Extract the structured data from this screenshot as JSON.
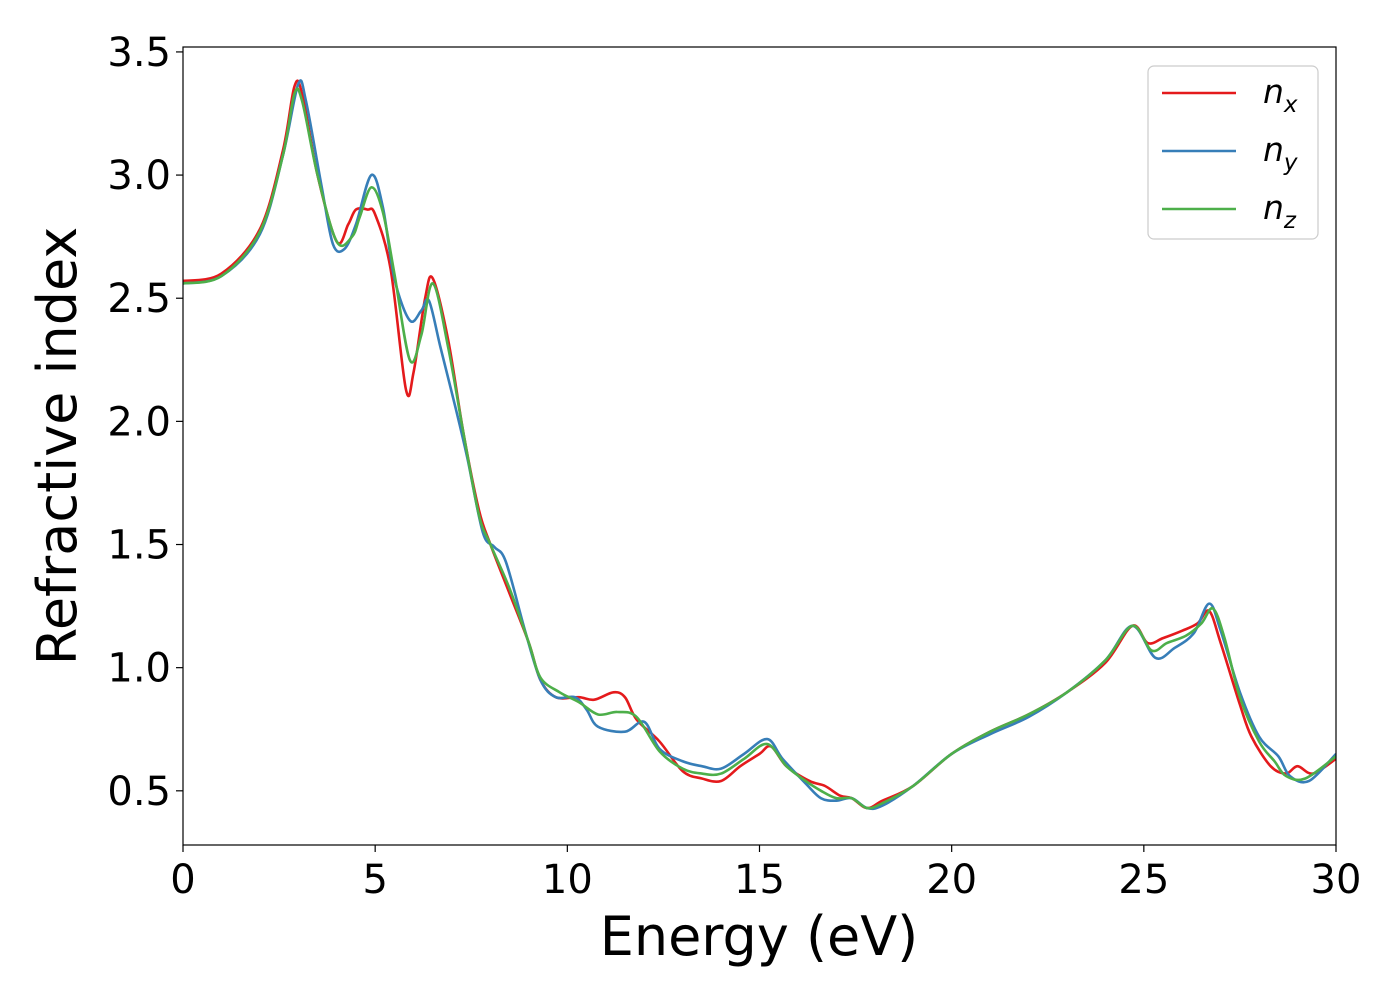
{
  "chart_data": {
    "type": "line",
    "title": "",
    "xlabel": "Energy (eV)",
    "ylabel": "Refractive index",
    "xlim": [
      0,
      30
    ],
    "ylim": [
      0.28,
      3.52
    ],
    "xticks": [
      0,
      5,
      10,
      15,
      20,
      25,
      30
    ],
    "yticks": [
      0.5,
      1.0,
      1.5,
      2.0,
      2.5,
      3.0,
      3.5
    ],
    "xtick_labels": [
      "0",
      "5",
      "10",
      "15",
      "20",
      "25",
      "30"
    ],
    "ytick_labels": [
      "0.5",
      "1.0",
      "1.5",
      "2.0",
      "2.5",
      "3.0",
      "3.5"
    ],
    "grid": false,
    "legend_position": "top-right",
    "series": [
      {
        "name": "n_x",
        "legend_base": "n",
        "legend_sub": "x",
        "color": "#e41a1c",
        "points": [
          [
            0,
            2.57
          ],
          [
            1,
            2.6
          ],
          [
            2,
            2.78
          ],
          [
            2.6,
            3.1
          ],
          [
            2.9,
            3.36
          ],
          [
            3.1,
            3.33
          ],
          [
            3.5,
            3.0
          ],
          [
            4.0,
            2.73
          ],
          [
            4.3,
            2.8
          ],
          [
            4.5,
            2.86
          ],
          [
            4.8,
            2.86
          ],
          [
            5.0,
            2.84
          ],
          [
            5.4,
            2.62
          ],
          [
            5.8,
            2.13
          ],
          [
            6.0,
            2.2
          ],
          [
            6.3,
            2.5
          ],
          [
            6.5,
            2.58
          ],
          [
            6.9,
            2.33
          ],
          [
            7.3,
            1.95
          ],
          [
            7.7,
            1.64
          ],
          [
            8.0,
            1.5
          ],
          [
            8.5,
            1.3
          ],
          [
            9.0,
            1.1
          ],
          [
            9.3,
            0.95
          ],
          [
            9.7,
            0.88
          ],
          [
            10.3,
            0.88
          ],
          [
            10.7,
            0.87
          ],
          [
            11.2,
            0.9
          ],
          [
            11.5,
            0.88
          ],
          [
            11.8,
            0.79
          ],
          [
            12.4,
            0.7
          ],
          [
            13.0,
            0.58
          ],
          [
            13.5,
            0.55
          ],
          [
            14.0,
            0.54
          ],
          [
            14.5,
            0.6
          ],
          [
            15.0,
            0.65
          ],
          [
            15.3,
            0.68
          ],
          [
            15.7,
            0.6
          ],
          [
            16.3,
            0.54
          ],
          [
            16.7,
            0.52
          ],
          [
            17.1,
            0.48
          ],
          [
            17.4,
            0.47
          ],
          [
            17.8,
            0.43
          ],
          [
            18.2,
            0.46
          ],
          [
            19.0,
            0.52
          ],
          [
            20.0,
            0.65
          ],
          [
            21.0,
            0.74
          ],
          [
            22.0,
            0.81
          ],
          [
            23.0,
            0.9
          ],
          [
            24.0,
            1.02
          ],
          [
            24.7,
            1.17
          ],
          [
            25.1,
            1.1
          ],
          [
            25.5,
            1.12
          ],
          [
            26.0,
            1.15
          ],
          [
            26.4,
            1.18
          ],
          [
            26.7,
            1.23
          ],
          [
            27.0,
            1.1
          ],
          [
            27.5,
            0.85
          ],
          [
            27.8,
            0.72
          ],
          [
            28.3,
            0.6
          ],
          [
            28.7,
            0.57
          ],
          [
            29.0,
            0.6
          ],
          [
            29.4,
            0.57
          ],
          [
            30,
            0.63
          ]
        ]
      },
      {
        "name": "n_y",
        "legend_base": "n",
        "legend_sub": "y",
        "color": "#377eb8",
        "points": [
          [
            0,
            2.56
          ],
          [
            1,
            2.59
          ],
          [
            2,
            2.76
          ],
          [
            2.6,
            3.08
          ],
          [
            3.0,
            3.37
          ],
          [
            3.2,
            3.3
          ],
          [
            3.6,
            2.96
          ],
          [
            3.9,
            2.72
          ],
          [
            4.2,
            2.7
          ],
          [
            4.5,
            2.8
          ],
          [
            4.9,
            3.0
          ],
          [
            5.2,
            2.87
          ],
          [
            5.5,
            2.58
          ],
          [
            5.9,
            2.41
          ],
          [
            6.2,
            2.45
          ],
          [
            6.4,
            2.49
          ],
          [
            6.7,
            2.3
          ],
          [
            7.1,
            2.05
          ],
          [
            7.4,
            1.85
          ],
          [
            7.8,
            1.55
          ],
          [
            8.1,
            1.49
          ],
          [
            8.4,
            1.43
          ],
          [
            8.9,
            1.15
          ],
          [
            9.3,
            0.95
          ],
          [
            9.7,
            0.88
          ],
          [
            10.2,
            0.88
          ],
          [
            10.5,
            0.83
          ],
          [
            10.8,
            0.76
          ],
          [
            11.5,
            0.74
          ],
          [
            12.0,
            0.78
          ],
          [
            12.4,
            0.67
          ],
          [
            13.0,
            0.62
          ],
          [
            13.5,
            0.6
          ],
          [
            14.0,
            0.59
          ],
          [
            14.6,
            0.65
          ],
          [
            15.2,
            0.71
          ],
          [
            15.6,
            0.63
          ],
          [
            16.2,
            0.53
          ],
          [
            16.6,
            0.47
          ],
          [
            17.0,
            0.46
          ],
          [
            17.4,
            0.47
          ],
          [
            17.8,
            0.43
          ],
          [
            18.2,
            0.44
          ],
          [
            19.0,
            0.52
          ],
          [
            20.0,
            0.65
          ],
          [
            21.0,
            0.73
          ],
          [
            22.0,
            0.8
          ],
          [
            23.0,
            0.9
          ],
          [
            24.0,
            1.03
          ],
          [
            24.7,
            1.17
          ],
          [
            25.3,
            1.04
          ],
          [
            25.8,
            1.08
          ],
          [
            26.3,
            1.14
          ],
          [
            26.7,
            1.26
          ],
          [
            27.0,
            1.15
          ],
          [
            27.5,
            0.9
          ],
          [
            28.0,
            0.72
          ],
          [
            28.5,
            0.64
          ],
          [
            28.8,
            0.56
          ],
          [
            29.3,
            0.54
          ],
          [
            30,
            0.65
          ]
        ]
      },
      {
        "name": "n_z",
        "legend_base": "n",
        "legend_sub": "z",
        "color": "#4daf4a",
        "points": [
          [
            0,
            2.56
          ],
          [
            1,
            2.59
          ],
          [
            2,
            2.77
          ],
          [
            2.6,
            3.08
          ],
          [
            2.9,
            3.33
          ],
          [
            3.1,
            3.3
          ],
          [
            3.5,
            3.0
          ],
          [
            4.0,
            2.73
          ],
          [
            4.4,
            2.75
          ],
          [
            4.6,
            2.83
          ],
          [
            4.9,
            2.95
          ],
          [
            5.2,
            2.85
          ],
          [
            5.5,
            2.6
          ],
          [
            5.9,
            2.25
          ],
          [
            6.2,
            2.35
          ],
          [
            6.5,
            2.56
          ],
          [
            6.9,
            2.3
          ],
          [
            7.3,
            1.95
          ],
          [
            7.7,
            1.62
          ],
          [
            8.0,
            1.5
          ],
          [
            8.5,
            1.32
          ],
          [
            9.0,
            1.1
          ],
          [
            9.3,
            0.96
          ],
          [
            9.8,
            0.9
          ],
          [
            10.3,
            0.86
          ],
          [
            10.8,
            0.81
          ],
          [
            11.3,
            0.82
          ],
          [
            11.8,
            0.8
          ],
          [
            12.4,
            0.66
          ],
          [
            13.0,
            0.59
          ],
          [
            13.5,
            0.57
          ],
          [
            14.0,
            0.57
          ],
          [
            14.6,
            0.63
          ],
          [
            15.2,
            0.69
          ],
          [
            15.7,
            0.6
          ],
          [
            16.2,
            0.54
          ],
          [
            16.6,
            0.5
          ],
          [
            17.0,
            0.47
          ],
          [
            17.4,
            0.47
          ],
          [
            17.8,
            0.43
          ],
          [
            18.2,
            0.45
          ],
          [
            19.0,
            0.52
          ],
          [
            20.0,
            0.65
          ],
          [
            21.0,
            0.74
          ],
          [
            22.0,
            0.81
          ],
          [
            23.0,
            0.9
          ],
          [
            24.0,
            1.03
          ],
          [
            24.7,
            1.17
          ],
          [
            25.2,
            1.07
          ],
          [
            25.6,
            1.1
          ],
          [
            26.1,
            1.13
          ],
          [
            26.5,
            1.18
          ],
          [
            26.8,
            1.24
          ],
          [
            27.1,
            1.12
          ],
          [
            27.5,
            0.88
          ],
          [
            28.0,
            0.7
          ],
          [
            28.4,
            0.62
          ],
          [
            28.7,
            0.56
          ],
          [
            29.2,
            0.55
          ],
          [
            30,
            0.64
          ]
        ]
      }
    ]
  }
}
